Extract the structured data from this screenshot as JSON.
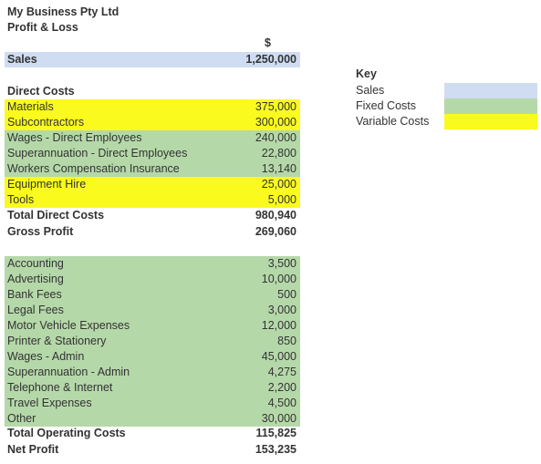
{
  "header": {
    "company": "My Business Pty Ltd",
    "report": "Profit & Loss",
    "currency": "$"
  },
  "sales": {
    "label": "Sales",
    "value": "1,250,000"
  },
  "direct_costs": {
    "heading": "Direct Costs",
    "items": [
      {
        "label": "Materials",
        "value": "375,000",
        "type": "variable"
      },
      {
        "label": "Subcontractors",
        "value": "300,000",
        "type": "variable"
      },
      {
        "label": "Wages - Direct Employees",
        "value": "240,000",
        "type": "fixed"
      },
      {
        "label": "Superannuation - Direct Employees",
        "value": "22,800",
        "type": "fixed"
      },
      {
        "label": "Workers Compensation Insurance",
        "value": "13,140",
        "type": "fixed"
      },
      {
        "label": "Equipment Hire",
        "value": "25,000",
        "type": "variable"
      },
      {
        "label": "Tools",
        "value": "5,000",
        "type": "variable"
      }
    ],
    "total_label": "Total Direct Costs",
    "total_value": "980,940"
  },
  "gross_profit": {
    "label": "Gross Profit",
    "value": "269,060"
  },
  "operating_costs": {
    "items": [
      {
        "label": "Accounting",
        "value": "3,500",
        "type": "fixed"
      },
      {
        "label": "Advertising",
        "value": "10,000",
        "type": "fixed"
      },
      {
        "label": "Bank Fees",
        "value": "500",
        "type": "fixed"
      },
      {
        "label": "Legal Fees",
        "value": "3,000",
        "type": "fixed"
      },
      {
        "label": "Motor Vehicle Expenses",
        "value": "12,000",
        "type": "fixed"
      },
      {
        "label": "Printer & Stationery",
        "value": "850",
        "type": "fixed"
      },
      {
        "label": "Wages - Admin",
        "value": "45,000",
        "type": "fixed"
      },
      {
        "label": "Superannuation - Admin",
        "value": "4,275",
        "type": "fixed"
      },
      {
        "label": "Telephone & Internet",
        "value": "2,200",
        "type": "fixed"
      },
      {
        "label": "Travel Expenses",
        "value": "4,500",
        "type": "fixed"
      },
      {
        "label": "Other",
        "value": "30,000",
        "type": "fixed"
      }
    ],
    "total_label": "Total Operating Costs",
    "total_value": "115,825"
  },
  "net_profit": {
    "label": "Net Profit",
    "value": "153,235"
  },
  "key": {
    "title": "Key",
    "items": [
      {
        "label": "Sales",
        "color": "#cfdcf1"
      },
      {
        "label": "Fixed Costs",
        "color": "#b5d8a9"
      },
      {
        "label": "Variable Costs",
        "color": "#fafa1e"
      }
    ]
  }
}
